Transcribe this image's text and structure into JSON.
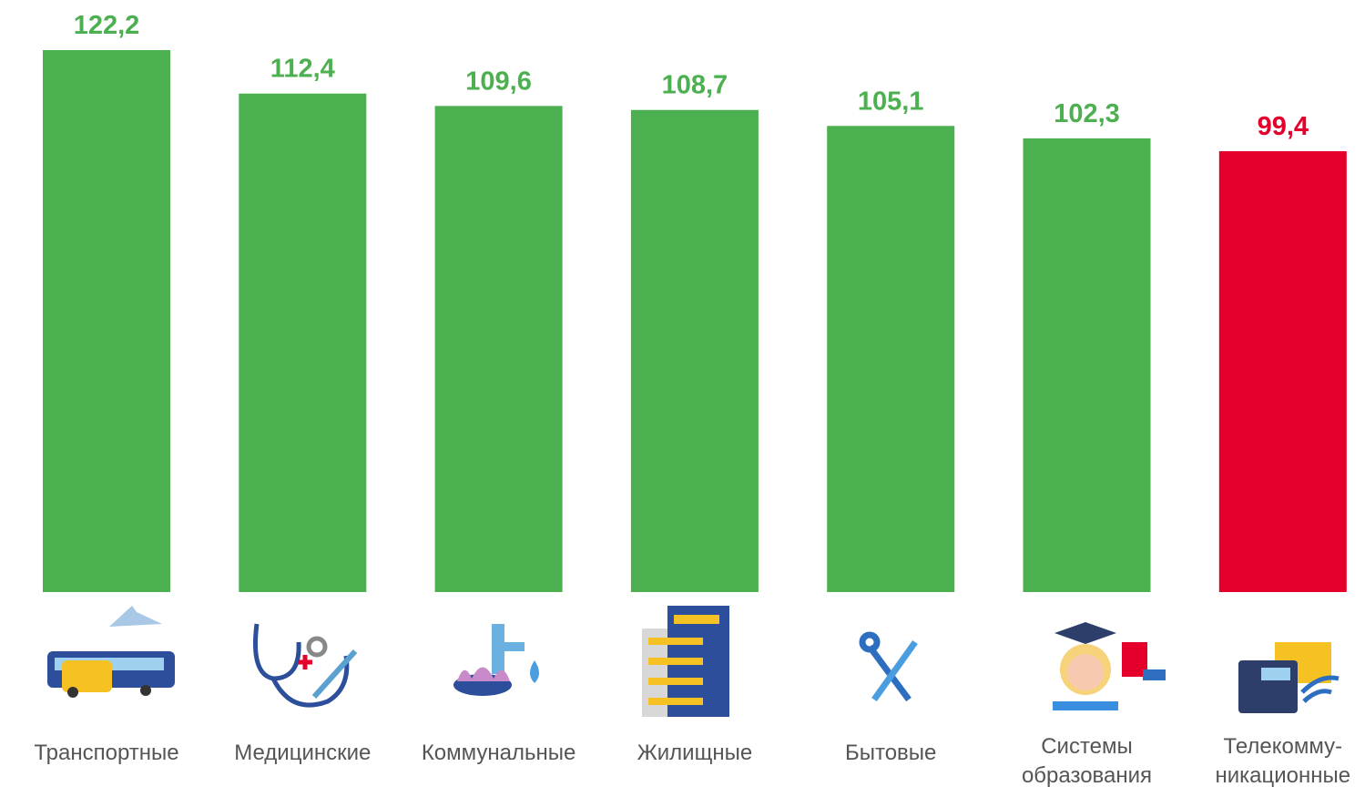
{
  "chart_data": {
    "type": "bar",
    "categories": [
      [
        "Транспортные"
      ],
      [
        "Медицинские"
      ],
      [
        "Коммунальные"
      ],
      [
        "Жилищные"
      ],
      [
        "Бытовые"
      ],
      [
        "Системы",
        "образования"
      ],
      [
        "Телекомму-",
        "никационные"
      ]
    ],
    "values": [
      122.2,
      112.4,
      109.6,
      108.7,
      105.1,
      102.3,
      99.4
    ],
    "value_labels": [
      "122,2",
      "112,4",
      "109,6",
      "108,7",
      "105,1",
      "102,3",
      "99,4"
    ],
    "colors": [
      "#4caf50",
      "#4caf50",
      "#4caf50",
      "#4caf50",
      "#4caf50",
      "#4caf50",
      "#e4002b"
    ],
    "ylim": [
      0,
      122.2
    ]
  }
}
